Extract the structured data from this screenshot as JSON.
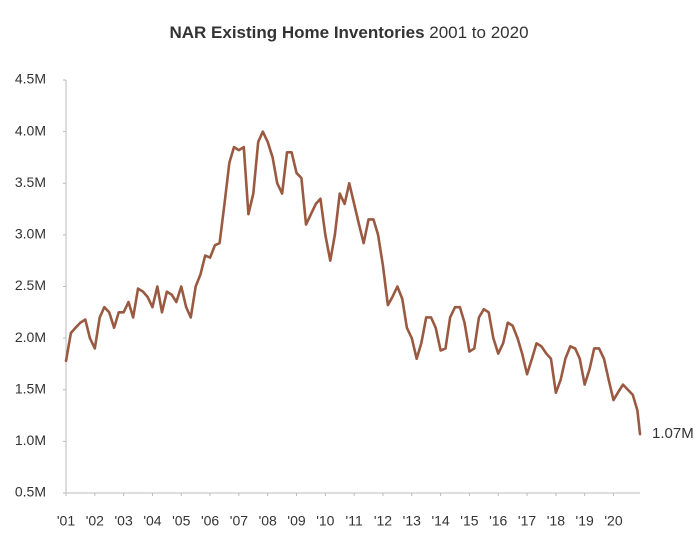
{
  "chart_data": {
    "type": "line",
    "title": "NAR Existing Home Inventories",
    "subtitle": "2001 to 2020",
    "color": "#9a5a42",
    "x": [
      2001,
      2001.17,
      2001.33,
      2001.5,
      2001.67,
      2001.83,
      2002,
      2002.17,
      2002.33,
      2002.5,
      2002.67,
      2002.83,
      2003,
      2003.17,
      2003.33,
      2003.5,
      2003.67,
      2003.83,
      2004,
      2004.17,
      2004.33,
      2004.5,
      2004.67,
      2004.83,
      2005,
      2005.17,
      2005.33,
      2005.5,
      2005.67,
      2005.83,
      2006,
      2006.17,
      2006.33,
      2006.5,
      2006.67,
      2006.83,
      2007,
      2007.17,
      2007.33,
      2007.5,
      2007.67,
      2007.83,
      2008,
      2008.17,
      2008.33,
      2008.5,
      2008.67,
      2008.83,
      2009,
      2009.17,
      2009.33,
      2009.5,
      2009.67,
      2009.83,
      2010,
      2010.17,
      2010.33,
      2010.5,
      2010.67,
      2010.83,
      2011,
      2011.17,
      2011.33,
      2011.5,
      2011.67,
      2011.83,
      2012,
      2012.17,
      2012.33,
      2012.5,
      2012.67,
      2012.83,
      2013,
      2013.17,
      2013.33,
      2013.5,
      2013.67,
      2013.83,
      2014,
      2014.17,
      2014.33,
      2014.5,
      2014.67,
      2014.83,
      2015,
      2015.17,
      2015.33,
      2015.5,
      2015.67,
      2015.83,
      2016,
      2016.17,
      2016.33,
      2016.5,
      2016.67,
      2016.83,
      2017,
      2017.17,
      2017.33,
      2017.5,
      2017.67,
      2017.83,
      2018,
      2018.17,
      2018.33,
      2018.5,
      2018.67,
      2018.83,
      2019,
      2019.17,
      2019.33,
      2019.5,
      2019.67,
      2019.83,
      2020,
      2020.17,
      2020.33,
      2020.5,
      2020.67,
      2020.83,
      2020.92
    ],
    "values": [
      1.78,
      2.05,
      2.1,
      2.15,
      2.18,
      2.0,
      1.9,
      2.2,
      2.3,
      2.25,
      2.1,
      2.25,
      2.25,
      2.35,
      2.2,
      2.48,
      2.45,
      2.4,
      2.3,
      2.5,
      2.25,
      2.45,
      2.42,
      2.35,
      2.5,
      2.3,
      2.2,
      2.5,
      2.62,
      2.8,
      2.78,
      2.9,
      2.92,
      3.3,
      3.7,
      3.85,
      3.82,
      3.85,
      3.2,
      3.4,
      3.9,
      4.0,
      3.9,
      3.75,
      3.5,
      3.4,
      3.8,
      3.8,
      3.6,
      3.55,
      3.1,
      3.2,
      3.3,
      3.35,
      3.0,
      2.75,
      3.0,
      3.4,
      3.3,
      3.5,
      3.3,
      3.1,
      2.92,
      3.15,
      3.15,
      3.0,
      2.7,
      2.32,
      2.4,
      2.5,
      2.38,
      2.1,
      2.0,
      1.8,
      1.95,
      2.2,
      2.2,
      2.1,
      1.88,
      1.9,
      2.2,
      2.3,
      2.3,
      2.15,
      1.87,
      1.9,
      2.2,
      2.28,
      2.25,
      2.0,
      1.85,
      1.95,
      2.15,
      2.12,
      2.0,
      1.85,
      1.65,
      1.8,
      1.95,
      1.92,
      1.85,
      1.8,
      1.47,
      1.6,
      1.8,
      1.92,
      1.9,
      1.8,
      1.55,
      1.7,
      1.9,
      1.9,
      1.8,
      1.6,
      1.4,
      1.48,
      1.55,
      1.5,
      1.45,
      1.3,
      1.07
    ],
    "value_labels": [
      null,
      null,
      null,
      null,
      null,
      null,
      null,
      null,
      null,
      null,
      null,
      null,
      null,
      null,
      null,
      null,
      null,
      null,
      null,
      null,
      null,
      null,
      null,
      null,
      null,
      null,
      null,
      null,
      null,
      null,
      null,
      null,
      null,
      null,
      null,
      null,
      null,
      null,
      null,
      null,
      null,
      null,
      null,
      null,
      null,
      null,
      null,
      null,
      null,
      null,
      null,
      null,
      null,
      null,
      null,
      null,
      null,
      null,
      null,
      null,
      null,
      null,
      null,
      null,
      null,
      null,
      null,
      null,
      null,
      null,
      null,
      null,
      null,
      null,
      null,
      null,
      null,
      null,
      null,
      null,
      null,
      null,
      null,
      null,
      null,
      null,
      null,
      null,
      null,
      null,
      null,
      null,
      null,
      null,
      null,
      null,
      null,
      null,
      null,
      null,
      null,
      null,
      null,
      null,
      null,
      null,
      null,
      null,
      null,
      null,
      null,
      null,
      null,
      null,
      null,
      null,
      null,
      null,
      null,
      null,
      "1.07M"
    ],
    "label_color": "#b5806a",
    "ylim": [
      0.5,
      4.5
    ],
    "yticks": [
      {
        "value": 0.5,
        "label": "0.5M"
      },
      {
        "value": 1.0,
        "label": "1.0M"
      },
      {
        "value": 1.5,
        "label": "1.5M"
      },
      {
        "value": 2.0,
        "label": "2.0M"
      },
      {
        "value": 2.5,
        "label": "2.5M"
      },
      {
        "value": 3.0,
        "label": "3.0M"
      },
      {
        "value": 3.5,
        "label": "3.5M"
      },
      {
        "value": 4.0,
        "label": "4.0M"
      },
      {
        "value": 4.5,
        "label": "4.5M"
      }
    ],
    "xlim": [
      2001,
      2020.92
    ],
    "xticks": [
      {
        "value": 2001,
        "label": "'01"
      },
      {
        "value": 2002,
        "label": "'02"
      },
      {
        "value": 2003,
        "label": "'03"
      },
      {
        "value": 2004,
        "label": "'04"
      },
      {
        "value": 2005,
        "label": "'05"
      },
      {
        "value": 2006,
        "label": "'06"
      },
      {
        "value": 2007,
        "label": "'07"
      },
      {
        "value": 2008,
        "label": "'08"
      },
      {
        "value": 2009,
        "label": "'09"
      },
      {
        "value": 2010,
        "label": "'10"
      },
      {
        "value": 2011,
        "label": "'11"
      },
      {
        "value": 2012,
        "label": "'12"
      },
      {
        "value": 2013,
        "label": "'13"
      },
      {
        "value": 2014,
        "label": "'14"
      },
      {
        "value": 2015,
        "label": "'15"
      },
      {
        "value": 2016,
        "label": "'16"
      },
      {
        "value": 2017,
        "label": "'17"
      },
      {
        "value": 2018,
        "label": "'18"
      },
      {
        "value": 2019,
        "label": "'19"
      },
      {
        "value": 2020,
        "label": "'20"
      }
    ],
    "grid": false
  }
}
